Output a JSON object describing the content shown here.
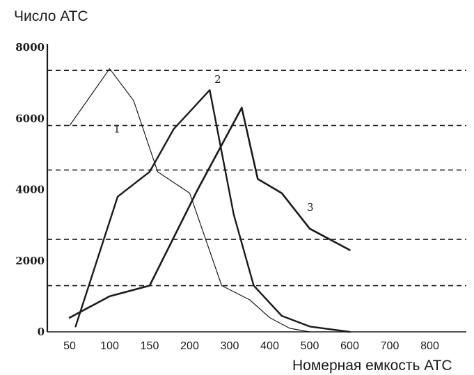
{
  "chart_data": {
    "type": "line",
    "title": "",
    "ylabel": "Число АТС",
    "xlabel": "Номерная емкость АТС",
    "ylim": [
      0,
      8000
    ],
    "yticks": [
      "0",
      "2000",
      "4000",
      "6000",
      "8000"
    ],
    "categories": [
      "50",
      "100",
      "150",
      "200",
      "300",
      "400",
      "500",
      "600",
      "700",
      "800"
    ],
    "grid_lines": [
      1300,
      2600,
      4550,
      5800,
      7350
    ],
    "grid": "dashed horizontal",
    "series": [
      {
        "name": "1",
        "width": 1.2,
        "values": [
          [
            0,
            5800
          ],
          [
            1.0,
            7400
          ],
          [
            1.6,
            6500
          ],
          [
            2.2,
            4500
          ],
          [
            3.0,
            3900
          ],
          [
            3.8,
            1300
          ],
          [
            4.5,
            900
          ],
          [
            5.0,
            400
          ],
          [
            5.5,
            100
          ],
          [
            6.0,
            0
          ]
        ]
      },
      {
        "name": "2",
        "width": 2.4,
        "values": [
          [
            0.15,
            150
          ],
          [
            1.2,
            3800
          ],
          [
            2.0,
            4500
          ],
          [
            2.6,
            5700
          ],
          [
            3.5,
            6800
          ],
          [
            4.1,
            3300
          ],
          [
            4.6,
            1300
          ],
          [
            5.3,
            450
          ],
          [
            6.0,
            150
          ],
          [
            7.0,
            0
          ]
        ]
      },
      {
        "name": "3",
        "width": 2.6,
        "values": [
          [
            0,
            400
          ],
          [
            1.0,
            1000
          ],
          [
            2.0,
            1300
          ],
          [
            3.2,
            4000
          ],
          [
            4.3,
            6300
          ],
          [
            4.7,
            4300
          ],
          [
            5.3,
            3900
          ],
          [
            6.0,
            2900
          ],
          [
            7.0,
            2300
          ]
        ]
      }
    ]
  }
}
